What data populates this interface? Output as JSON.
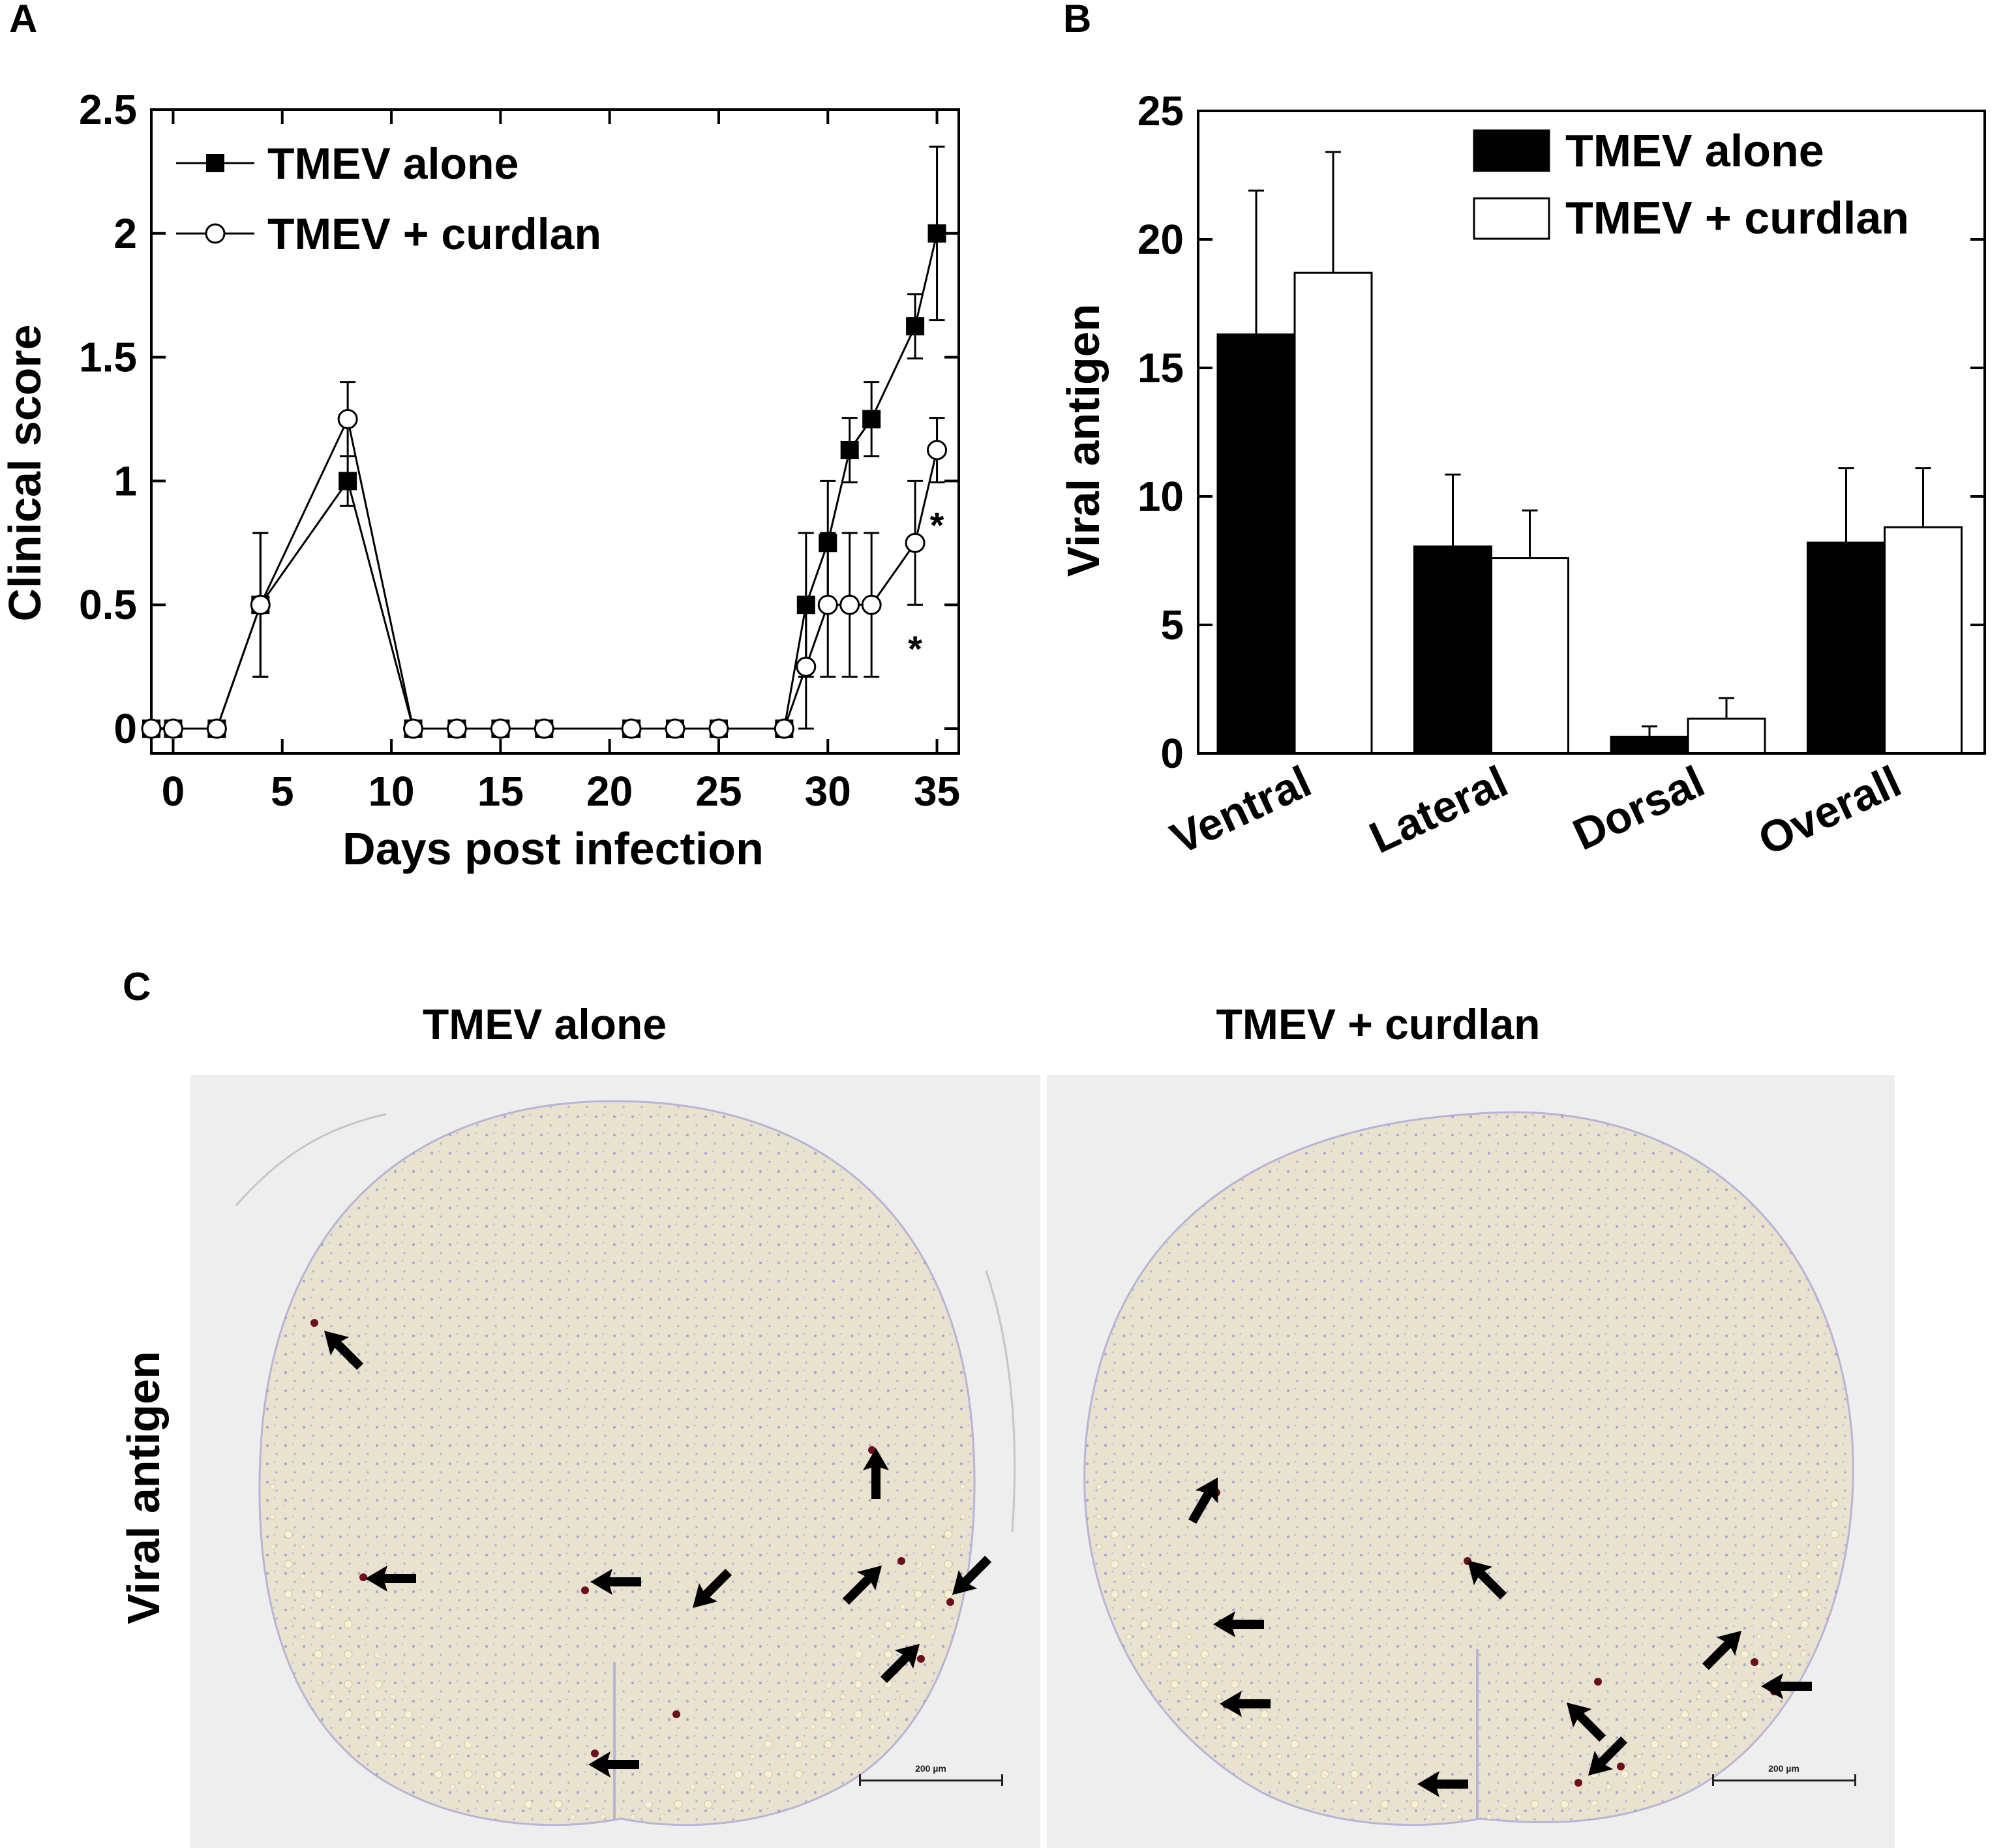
{
  "panels": {
    "a": "A",
    "b": "B",
    "c": "C"
  },
  "chart_data": [
    {
      "type": "line",
      "xlabel": "Days post infection",
      "ylabel": "Clinical score",
      "xlim": [
        -1,
        36
      ],
      "ylim": [
        -0.1,
        2.5
      ],
      "xticks": [
        0,
        5,
        10,
        15,
        20,
        25,
        30,
        35
      ],
      "yticks": [
        0,
        0.5,
        1,
        1.5,
        2,
        2.5
      ],
      "ytick_labels": [
        "0",
        "0.5",
        "1",
        "1.5",
        "2",
        "2.5"
      ],
      "legend_position": "top-left",
      "series": [
        {
          "name": "TMEV alone",
          "marker": "filled-square",
          "x": [
            -1,
            0,
            2,
            4,
            8,
            11,
            13,
            15,
            17,
            21,
            23,
            25,
            28,
            29,
            30,
            31,
            32,
            34,
            35
          ],
          "y": [
            0,
            0,
            0,
            0.5,
            1.0,
            0,
            0,
            0,
            0,
            0,
            0,
            0,
            0,
            0.5,
            0.75,
            1.125,
            1.25,
            1.625,
            2.0
          ],
          "err": [
            0,
            0,
            0,
            0.29,
            0.1,
            0,
            0,
            0,
            0,
            0,
            0,
            0,
            0,
            0.29,
            0.25,
            0.13,
            0.15,
            0.13,
            0.35
          ]
        },
        {
          "name": "TMEV + curdlan",
          "marker": "open-circle",
          "x": [
            -1,
            0,
            2,
            4,
            8,
            11,
            13,
            15,
            17,
            21,
            23,
            25,
            28,
            29,
            30,
            31,
            32,
            34,
            35
          ],
          "y": [
            0,
            0,
            0,
            0.5,
            1.25,
            0,
            0,
            0,
            0,
            0,
            0,
            0,
            0,
            0.25,
            0.5,
            0.5,
            0.5,
            0.75,
            1.125
          ],
          "err": [
            0,
            0,
            0,
            0.29,
            0.15,
            0,
            0,
            0,
            0,
            0,
            0,
            0,
            0,
            0.25,
            0.29,
            0.29,
            0.29,
            0.25,
            0.13
          ]
        }
      ],
      "annotations": [
        {
          "text": "*",
          "x": 34,
          "y": 0.35
        },
        {
          "text": "*",
          "x": 35,
          "y": 0.85
        }
      ]
    },
    {
      "type": "bar",
      "ylabel": "Viral antigen",
      "ylim": [
        0,
        25
      ],
      "yticks": [
        0,
        5,
        10,
        15,
        20,
        25
      ],
      "categories": [
        "Ventral",
        "Lateral",
        "Dorsal",
        "Overall"
      ],
      "legend_position": "top-right",
      "series": [
        {
          "name": "TMEV alone",
          "color": "#000000",
          "values": [
            16.3,
            8.05,
            0.65,
            8.2
          ],
          "err": [
            5.6,
            2.8,
            0.4,
            2.9
          ]
        },
        {
          "name": "TMEV + curdlan",
          "color": "#ffffff",
          "values": [
            18.7,
            7.6,
            1.35,
            8.8
          ],
          "err": [
            4.7,
            1.85,
            0.8,
            2.3
          ]
        }
      ]
    }
  ],
  "micrographs": {
    "titles": [
      "TMEV alone",
      "TMEV + curdlan"
    ],
    "row_label": "Viral antigen",
    "scale_bar": "200 µm"
  }
}
